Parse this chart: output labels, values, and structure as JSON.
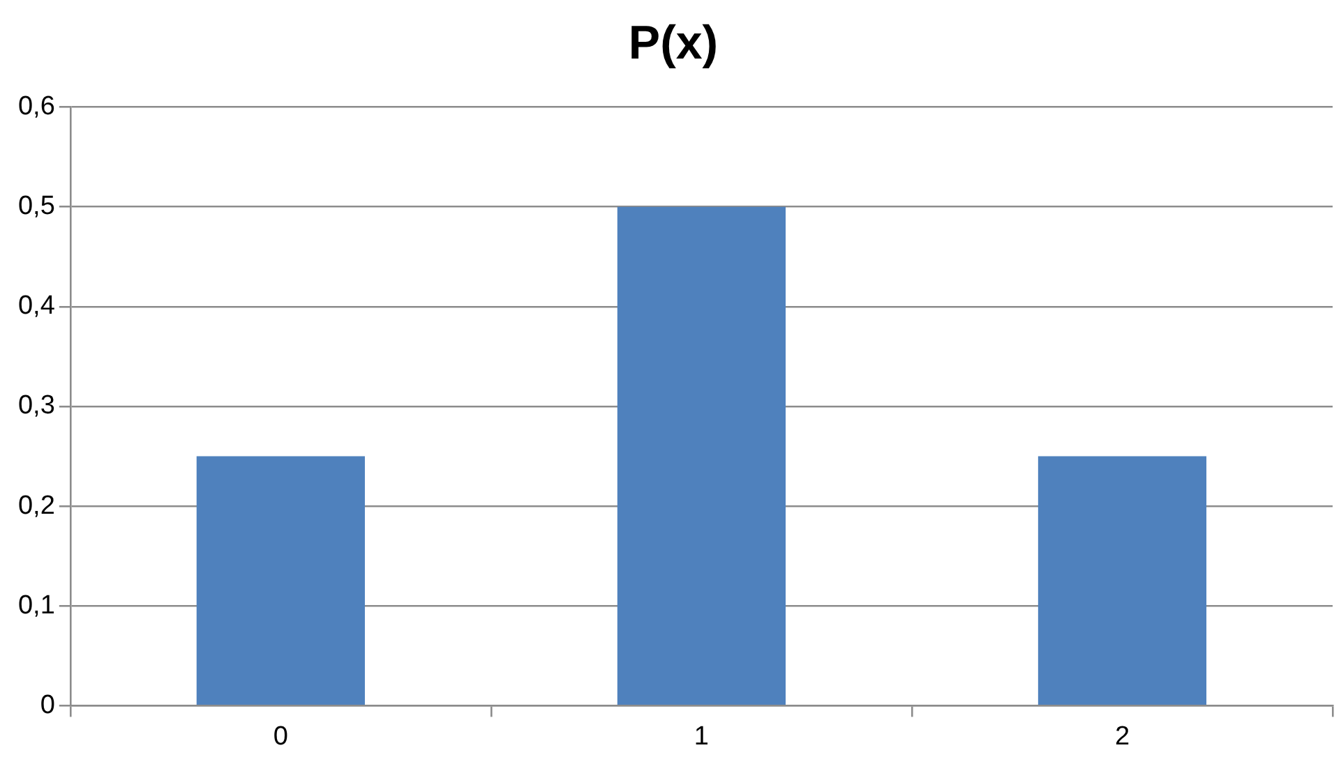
{
  "chart_data": {
    "type": "bar",
    "title": "P(x)",
    "categories": [
      "0",
      "1",
      "2"
    ],
    "values": [
      0.25,
      0.5,
      0.25
    ],
    "color": "#4f81bd",
    "ylim": [
      0,
      0.6
    ],
    "yticks": [
      0,
      {
        "value": 0.1,
        "label": "0,1"
      },
      {
        "value": 0.2,
        "label": "0,2"
      },
      {
        "value": 0.3,
        "label": "0,3"
      },
      {
        "value": 0.4,
        "label": "0,4"
      },
      {
        "value": 0.5,
        "label": "0,5"
      },
      {
        "value": 0.6,
        "label": "0,6"
      }
    ],
    "grid": "y",
    "legend": false
  }
}
